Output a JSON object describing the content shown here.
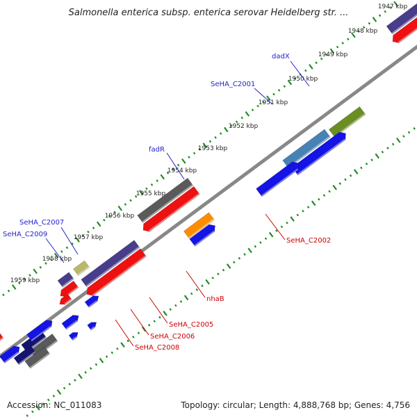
{
  "title": "Salmonella enterica subsp. enterica serovar Heidelberg str. ...",
  "footer": {
    "accession": "Accession: NC_011083",
    "topology": "Topology: circular; Length: 4,888,768 bp; Genes: 4,756"
  },
  "ticks": [
    {
      "label": "1947 kbp",
      "pos": 1947
    },
    {
      "label": "1948 kbp",
      "pos": 1948
    },
    {
      "label": "1949 kbp",
      "pos": 1949
    },
    {
      "label": "1950 kbp",
      "pos": 1950
    },
    {
      "label": "1951 kbp",
      "pos": 1951
    },
    {
      "label": "1952 kbp",
      "pos": 1952
    },
    {
      "label": "1953 kbp",
      "pos": 1953
    },
    {
      "label": "1954 kbp",
      "pos": 1954
    },
    {
      "label": "1955 kbp",
      "pos": 1955
    },
    {
      "label": "1956 kbp",
      "pos": 1956
    },
    {
      "label": "1957 kbp",
      "pos": 1957
    },
    {
      "label": "1958 kbp",
      "pos": 1958
    },
    {
      "label": "1959 kbp",
      "pos": 1959
    }
  ],
  "gene_labels": [
    {
      "text": "dadX",
      "strand": "forward",
      "color": "#2222cc"
    },
    {
      "text": "SeHA_C2001",
      "strand": "forward",
      "color": "#2222cc"
    },
    {
      "text": "fadR",
      "strand": "forward",
      "color": "#2222cc"
    },
    {
      "text": "SeHA_C2007",
      "strand": "forward",
      "color": "#2222cc"
    },
    {
      "text": "SeHA_C2009",
      "strand": "forward",
      "color": "#2222cc"
    },
    {
      "text": "SeHA_C2002",
      "strand": "reverse",
      "color": "#cc0000"
    },
    {
      "text": "nhaB",
      "strand": "reverse",
      "color": "#cc0000"
    },
    {
      "text": "SeHA_C2005",
      "strand": "reverse",
      "color": "#cc0000"
    },
    {
      "text": "SeHA_C2006",
      "strand": "reverse",
      "color": "#cc0000"
    },
    {
      "text": "SeHA_C2008",
      "strand": "reverse",
      "color": "#cc0000"
    }
  ],
  "colors": {
    "tick_dots": "#228b22",
    "backbone": "#888888",
    "forward_label": "#2222cc",
    "reverse_label": "#cc0000",
    "cds_forward": "#1414e6",
    "cds_reverse": "#ee1111",
    "navy": "#14146e",
    "gray": "#5a5a5a",
    "steelblue": "#4682b4",
    "olive": "#6b8e23",
    "orange": "#ff8c00",
    "slate": "#483d8b",
    "khaki": "#bdb76b",
    "pale": "#eee8aa"
  }
}
